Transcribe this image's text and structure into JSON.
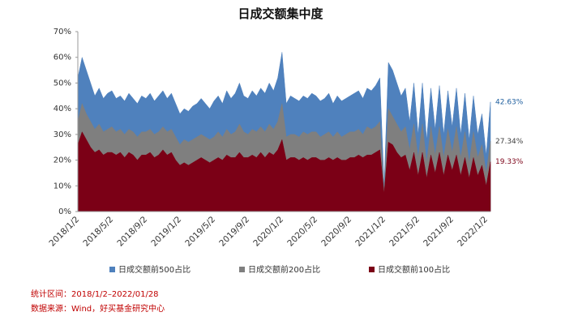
{
  "chart_data": {
    "type": "area",
    "title": "日成交额集中度",
    "categories": [
      "2018/1/2",
      null,
      null,
      null,
      null,
      null,
      null,
      null,
      "2018/5/2",
      null,
      null,
      null,
      null,
      null,
      null,
      null,
      "2018/9/2",
      null,
      null,
      null,
      null,
      null,
      null,
      null,
      "2019/1/2",
      null,
      null,
      null,
      null,
      null,
      null,
      null,
      "2019/5/2",
      null,
      null,
      null,
      null,
      null,
      null,
      null,
      "2019/9/2",
      null,
      null,
      null,
      null,
      null,
      null,
      null,
      "2020/1/2",
      null,
      null,
      null,
      null,
      null,
      null,
      null,
      "2020/5/2",
      null,
      null,
      null,
      null,
      null,
      null,
      null,
      "2020/9/2",
      null,
      null,
      null,
      null,
      null,
      null,
      null,
      "2021/1/2",
      null,
      null,
      null,
      null,
      null,
      null,
      null,
      "2021/5/2",
      null,
      null,
      null,
      null,
      null,
      null,
      null,
      "2021/9/2",
      null,
      null,
      null,
      null,
      null,
      null,
      null,
      "2022/1/2",
      null
    ],
    "series": [
      {
        "name": "日成交额前500占比",
        "color": "#4f81bd",
        "label_color": "#1f5f9f",
        "values": [
          52,
          60,
          55,
          50,
          45,
          48,
          44,
          46,
          47,
          44,
          45,
          43,
          46,
          44,
          42,
          45,
          44,
          46,
          43,
          45,
          47,
          44,
          46,
          42,
          38,
          40,
          39,
          41,
          42,
          44,
          42,
          40,
          43,
          45,
          42,
          47,
          44,
          46,
          50,
          45,
          44,
          47,
          45,
          48,
          46,
          50,
          47,
          52,
          62,
          42,
          45,
          44,
          43,
          45,
          44,
          46,
          45,
          43,
          44,
          46,
          42,
          45,
          43,
          44,
          45,
          46,
          47,
          44,
          48,
          47,
          49,
          52,
          10,
          58,
          55,
          50,
          45,
          48,
          35,
          50,
          30,
          50,
          28,
          48,
          32,
          49,
          30,
          47,
          33,
          48,
          30,
          46,
          28,
          45,
          30,
          38,
          22,
          42.63
        ],
        "value_labels": [
          null,
          null,
          null,
          null,
          null,
          null,
          null,
          null,
          null,
          null,
          null,
          null,
          null,
          null,
          null,
          null,
          null,
          null,
          null,
          null,
          null,
          null,
          null,
          null,
          null,
          null,
          null,
          null,
          null,
          null,
          null,
          null,
          null,
          null,
          null,
          null,
          null,
          null,
          null,
          null,
          null,
          null,
          null,
          null,
          null,
          null,
          null,
          null,
          null,
          null,
          null,
          null,
          null,
          null,
          null,
          null,
          null,
          null,
          null,
          null,
          null,
          null,
          null,
          null,
          null,
          null,
          null,
          null,
          null,
          null,
          null,
          null,
          null,
          null,
          null,
          null,
          null,
          null,
          null,
          null,
          null,
          null,
          null,
          null,
          null,
          null,
          null,
          null,
          null,
          null,
          null,
          null,
          null,
          null,
          null,
          null,
          null,
          "42.63%"
        ]
      },
      {
        "name": "日成交额前200占比",
        "color": "#7f7f7f",
        "label_color": "#404040",
        "values": [
          35,
          42,
          38,
          35,
          32,
          34,
          31,
          32,
          33,
          31,
          32,
          30,
          32,
          31,
          29,
          31,
          31,
          32,
          30,
          31,
          33,
          31,
          32,
          29,
          26,
          28,
          27,
          28,
          29,
          30,
          29,
          28,
          29,
          31,
          29,
          32,
          30,
          31,
          34,
          31,
          30,
          32,
          31,
          33,
          31,
          34,
          32,
          35,
          42,
          29,
          30,
          30,
          29,
          31,
          30,
          31,
          31,
          29,
          30,
          31,
          29,
          31,
          29,
          30,
          31,
          31,
          32,
          30,
          33,
          32,
          33,
          35,
          8,
          40,
          37,
          34,
          31,
          33,
          24,
          34,
          21,
          34,
          19,
          33,
          22,
          33,
          21,
          32,
          23,
          33,
          21,
          31,
          19,
          31,
          21,
          26,
          15,
          27.34
        ],
        "value_labels": [
          null,
          null,
          null,
          null,
          null,
          null,
          null,
          null,
          null,
          null,
          null,
          null,
          null,
          null,
          null,
          null,
          null,
          null,
          null,
          null,
          null,
          null,
          null,
          null,
          null,
          null,
          null,
          null,
          null,
          null,
          null,
          null,
          null,
          null,
          null,
          null,
          null,
          null,
          null,
          null,
          null,
          null,
          null,
          null,
          null,
          null,
          null,
          null,
          null,
          null,
          null,
          null,
          null,
          null,
          null,
          null,
          null,
          null,
          null,
          null,
          null,
          null,
          null,
          null,
          null,
          null,
          null,
          null,
          null,
          null,
          null,
          null,
          null,
          null,
          null,
          null,
          null,
          null,
          null,
          null,
          null,
          null,
          null,
          null,
          null,
          null,
          null,
          null,
          null,
          null,
          null,
          null,
          null,
          null,
          null,
          null,
          null,
          "27.34%"
        ]
      },
      {
        "name": "日成交额前100占比",
        "color": "#7b0016",
        "label_color": "#7b0016",
        "values": [
          26,
          31,
          28,
          25,
          23,
          24,
          22,
          23,
          23,
          22,
          23,
          21,
          23,
          22,
          20,
          22,
          22,
          23,
          21,
          22,
          24,
          22,
          23,
          20,
          18,
          19,
          18,
          19,
          20,
          21,
          20,
          19,
          20,
          21,
          20,
          22,
          21,
          21,
          23,
          21,
          21,
          22,
          21,
          23,
          21,
          23,
          22,
          24,
          28,
          20,
          21,
          21,
          20,
          21,
          20,
          21,
          21,
          20,
          20,
          21,
          20,
          21,
          20,
          20,
          21,
          21,
          22,
          21,
          22,
          22,
          23,
          24,
          7,
          27,
          26,
          23,
          21,
          22,
          16,
          23,
          14,
          23,
          13,
          22,
          15,
          23,
          14,
          22,
          16,
          22,
          14,
          21,
          13,
          21,
          14,
          18,
          10,
          19.33
        ],
        "value_labels": [
          null,
          null,
          null,
          null,
          null,
          null,
          null,
          null,
          null,
          null,
          null,
          null,
          null,
          null,
          null,
          null,
          null,
          null,
          null,
          null,
          null,
          null,
          null,
          null,
          null,
          null,
          null,
          null,
          null,
          null,
          null,
          null,
          null,
          null,
          null,
          null,
          null,
          null,
          null,
          null,
          null,
          null,
          null,
          null,
          null,
          null,
          null,
          null,
          null,
          null,
          null,
          null,
          null,
          null,
          null,
          null,
          null,
          null,
          null,
          null,
          null,
          null,
          null,
          null,
          null,
          null,
          null,
          null,
          null,
          null,
          null,
          null,
          null,
          null,
          null,
          null,
          null,
          null,
          null,
          null,
          null,
          null,
          null,
          null,
          null,
          null,
          null,
          null,
          null,
          null,
          null,
          null,
          null,
          null,
          null,
          null,
          null,
          "19.33%"
        ]
      }
    ],
    "ylim": [
      0,
      70
    ],
    "yticks": [
      {
        "value": 0,
        "label": "0%"
      },
      {
        "value": 10,
        "label": "10%"
      },
      {
        "value": 20,
        "label": "20%"
      },
      {
        "value": 30,
        "label": "30%"
      },
      {
        "value": 40,
        "label": "40%"
      },
      {
        "value": 50,
        "label": "50%"
      },
      {
        "value": 60,
        "label": "60%"
      },
      {
        "value": 70,
        "label": "70%"
      }
    ],
    "grid": false,
    "legend": "bottom",
    "notes": [
      "统计区间：2018/1/2–2022/01/28",
      "数据来源：Wind，好买基金研究中心"
    ]
  }
}
